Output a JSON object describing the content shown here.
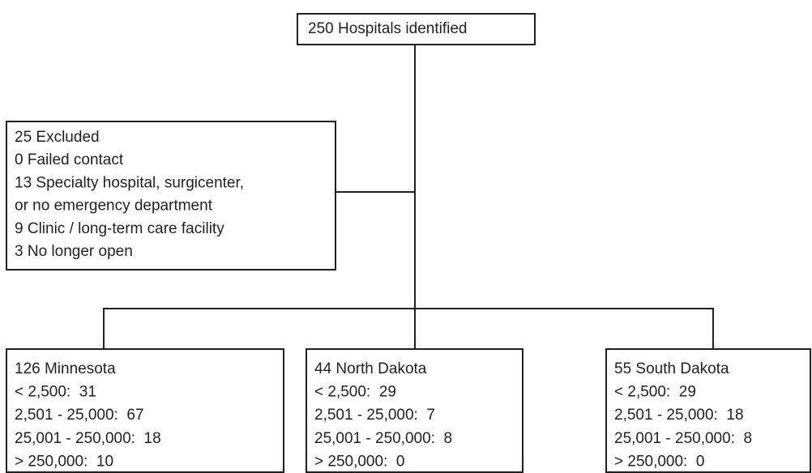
{
  "nodes": [
    {
      "lines": [
        "250 Hospitals identified"
      ]
    },
    {
      "lines": [
        "25 Excluded",
        "0 Failed contact",
        "13 Specialty hospital, surgicenter,",
        "or no emergency department",
        "9 Clinic / long-term care facility",
        "3 No longer open"
      ]
    },
    {
      "lines": [
        "126 Minnesota",
        "< 2,500:  31",
        "2,501 - 25,000:  67",
        "25,001 - 250,000:  18",
        "> 250,000:  10"
      ]
    },
    {
      "lines": [
        "44 North Dakota",
        "< 2,500:  29",
        "2,501 - 25,000:  7",
        "25,001 - 250,000:  8",
        "> 250,000:  0"
      ]
    },
    {
      "lines": [
        "55 South Dakota",
        "< 2,500:  29",
        "2,501 - 25,000:  18",
        "25,001 - 250,000:  8",
        "> 250,000:  0"
      ]
    }
  ]
}
